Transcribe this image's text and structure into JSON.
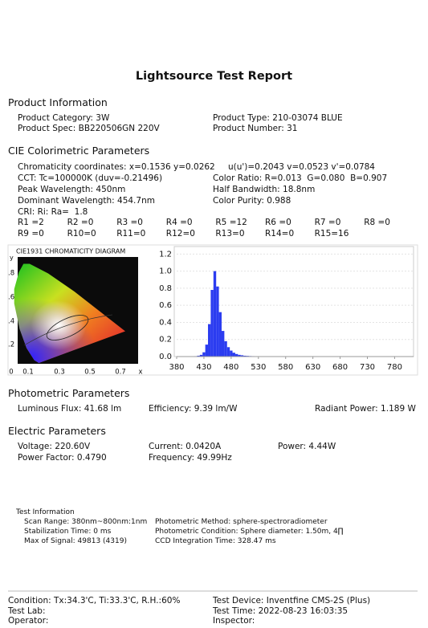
{
  "title": "Lightsource Test Report",
  "product": {
    "heading": "Product Information",
    "category": "Product Category: 3W",
    "type": "Product Type: 210-03074 BLUE",
    "spec": "Product Spec: BB220506GN 220V",
    "number": "Product Number: 31"
  },
  "cie": {
    "heading": "CIE Colorimetric Parameters",
    "lines": [
      [
        "Chromaticity coordinates: x=0.1536 y=0.0262",
        "u(u')=0.2043 v=0.0523 v'=0.0784"
      ],
      [
        "CCT: Tc=100000K (duv=-0.21496)",
        "Color Ratio: R=0.013  G=0.080  B=0.907"
      ],
      [
        "Peak Wavelength: 450nm",
        "Half Bandwidth: 18.8nm"
      ],
      [
        "Dominant Wavelength: 454.7nm",
        "Color Purity: 0.988"
      ]
    ],
    "cri": "CRI: Ri: Ra=  1.8",
    "r_values": [
      "R1 =2",
      "R2 =0",
      "R3 =0",
      "R4 =0",
      "R5 =12",
      "R6 =0",
      "R7 =0",
      "R8 =0",
      "R9 =0",
      "R10=0",
      "R11=0",
      "R12=0",
      "R13=0",
      "R14=0",
      "R15=16"
    ]
  },
  "cie_diagram": {
    "title": "CIE1931 CHROMATICITY DIAGRAM",
    "y_label": "y",
    "y_ticks": [
      ".8",
      ".6",
      ".4",
      ".2"
    ],
    "x_ticks": [
      "0",
      "0.1",
      "0.3",
      "0.5",
      "0.7"
    ],
    "x_label": "x"
  },
  "spectrum": {
    "type": "bar",
    "color": "#2b3cf0",
    "x": [
      415,
      420,
      425,
      430,
      435,
      440,
      445,
      450,
      455,
      460,
      465,
      470,
      475,
      480,
      485,
      490,
      495,
      500,
      505,
      510,
      515,
      520
    ],
    "values": [
      0.005,
      0.01,
      0.02,
      0.05,
      0.14,
      0.38,
      0.78,
      1.0,
      0.82,
      0.52,
      0.3,
      0.18,
      0.11,
      0.07,
      0.045,
      0.03,
      0.02,
      0.015,
      0.01,
      0.008,
      0.006,
      0.005
    ],
    "xlim": [
      380,
      800
    ],
    "ylim": [
      0,
      1.25
    ],
    "xticks": [
      380,
      430,
      480,
      530,
      580,
      630,
      680,
      730,
      780
    ],
    "yticks": [
      {
        "value": 0,
        "label": "0.0"
      },
      0.2,
      0.4,
      0.6,
      0.8,
      {
        "value": 1,
        "label": "1.0"
      },
      1.2
    ]
  },
  "photometric": {
    "heading": "Photometric Parameters",
    "flux": "Luminous Flux: 41.68 lm",
    "efficiency": "Efficiency: 9.39 lm/W",
    "radiant": "Radiant Power: 1.189 W"
  },
  "electric": {
    "heading": "Electric Parameters",
    "voltage": "Voltage: 220.60V",
    "current": "Current: 0.0420A",
    "power": "Power: 4.44W",
    "pf": "Power Factor: 0.4790",
    "frequency": "Frequency: 49.99Hz"
  },
  "test_info": {
    "heading": "Test Information",
    "scan": "Scan Range: 380nm~800nm:1nm",
    "method": "Photometric Method: sphere-spectroradiometer",
    "stab": "Stabilization Time: 0 ms",
    "condition": "Photometric Condition: Sphere diameter: 1.50m, 4∏",
    "max": "Max of Signal: 49813 (4319)",
    "ccd": "CCD Integration Time: 328.47 ms"
  },
  "footer": {
    "condition": "Condition: Tx:34.3'C, Ti:33.3'C, R.H.:60%",
    "device": "Test Device: Inventfine CMS-2S (Plus)",
    "lab": "Test Lab:",
    "time": "Test Time: 2022-08-23 16:03:35",
    "operator": "Operator:",
    "inspector": "Inspector:"
  }
}
